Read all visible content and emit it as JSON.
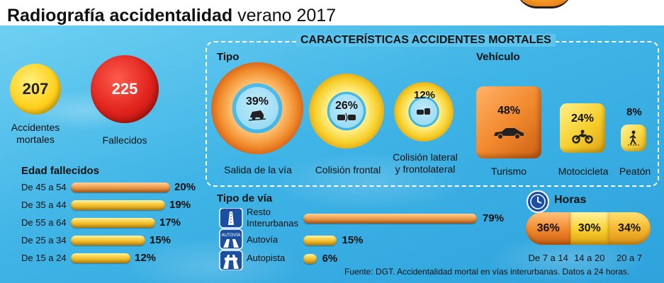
{
  "header": {
    "title_bold": "Radiografía accidentalidad",
    "title_light": "verano 2017"
  },
  "totals": {
    "accidents_value": "207",
    "accidents_label_1": "Accidentes",
    "accidents_label_2": "mortales",
    "deaths_value": "225",
    "deaths_label": "Fallecidos"
  },
  "characteristics": {
    "title": "CARACTERÍSTICAS ACCIDENTES MORTALES",
    "tipo_title": "Tipo",
    "vehiculo_title": "Vehículo",
    "tipo_via_title": "Tipo de vía",
    "horas_title": "Horas"
  },
  "source": "Fuente: DGT. Accidentalidad mortal en vías interurbanas. Datos a 24 horas.",
  "colors": {
    "water": "#3fb4e6",
    "gold": "#f5c636",
    "orange": "#f08a2a",
    "red": "#e0231c"
  },
  "chart_data": [
    {
      "type": "bar",
      "id": "totals",
      "categories": [
        "Accidentes mortales",
        "Fallecidos"
      ],
      "values": [
        207,
        225
      ]
    },
    {
      "type": "bar",
      "id": "tipo",
      "title": "Tipo",
      "categories": [
        "Salida de la vía",
        "Colisión frontal",
        "Colisión lateral y frontolateral"
      ],
      "values": [
        39,
        26,
        12
      ],
      "value_labels": [
        "39%",
        "26%",
        "12%"
      ],
      "icons": [
        "car-off-road-icon",
        "frontal-collision-icon",
        "side-collision-icon"
      ]
    },
    {
      "type": "bar",
      "id": "vehiculo",
      "title": "Vehículo",
      "categories": [
        "Turismo",
        "Motocicleta",
        "Peatón"
      ],
      "values": [
        48,
        24,
        8
      ],
      "value_labels": [
        "48%",
        "24%",
        "8%"
      ],
      "icons": [
        "car-icon",
        "motorcycle-icon",
        "pedestrian-icon"
      ]
    },
    {
      "type": "bar",
      "id": "edad",
      "title": "Edad fallecidos",
      "orientation": "horizontal",
      "categories": [
        "De 45 a 54",
        "De 35 a 44",
        "De 55 a 64",
        "De 25 a 34",
        "De 15 a 24"
      ],
      "values": [
        20,
        19,
        17,
        15,
        12
      ],
      "value_labels": [
        "20%",
        "19%",
        "17%",
        "15%",
        "12%"
      ]
    },
    {
      "type": "bar",
      "id": "tipo_via",
      "title": "Tipo de vía",
      "orientation": "horizontal",
      "categories": [
        "Resto Interurbanas",
        "Autovía",
        "Autopista"
      ],
      "category_lines": [
        [
          "Resto",
          "Interurbanas"
        ],
        [
          "Autovía"
        ],
        [
          "Autopista"
        ]
      ],
      "values": [
        79,
        15,
        6
      ],
      "value_labels": [
        "79%",
        "15%",
        "6%"
      ]
    },
    {
      "type": "bar",
      "id": "horas",
      "title": "Horas",
      "orientation": "stacked-horizontal",
      "categories": [
        "De 7 a 14",
        "14 a 20",
        "20 a 7"
      ],
      "values": [
        36,
        30,
        34
      ],
      "value_labels": [
        "36%",
        "30%",
        "34%"
      ]
    }
  ]
}
